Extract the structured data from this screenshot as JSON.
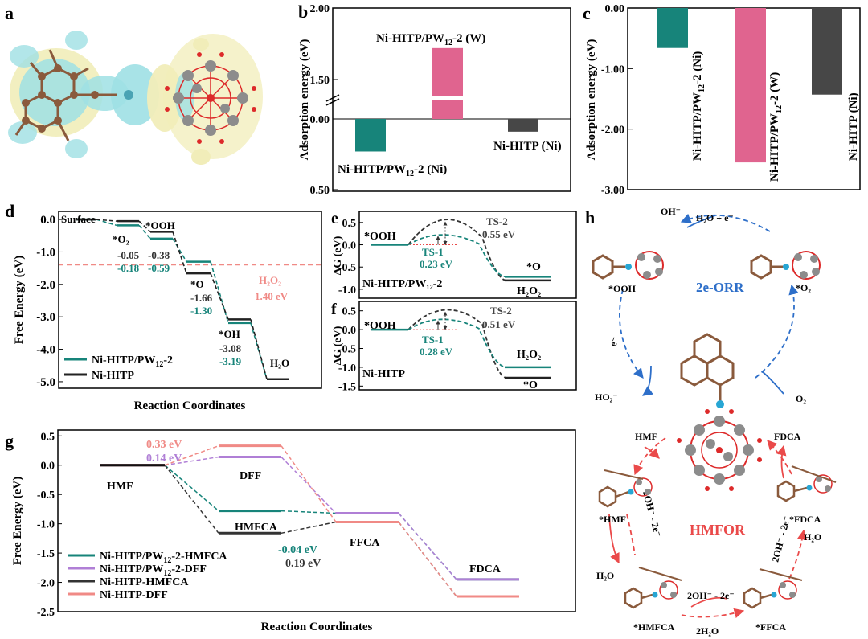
{
  "colors": {
    "teal": "#17847a",
    "pink": "#e0648f",
    "dark": "#474747",
    "purple": "#b07fd6",
    "salmon": "#f08a86",
    "cyan_lobe": "#9fe0e4",
    "yellow_lobe": "#f1edb9",
    "brown": "#8a5a3c",
    "grey_atom": "#8c8c8c",
    "red_atom": "#dd2a2a",
    "blue_arrow": "#2e6fc9",
    "red_arrow": "#ea4a4a"
  },
  "panel_labels": [
    "a",
    "b",
    "c",
    "d",
    "e",
    "f",
    "g",
    "h"
  ],
  "panel_a": {
    "description_icon": "charge-density-difference-isosurface"
  },
  "chart_data": [
    {
      "id": "b",
      "type": "bar",
      "ylabel": "Adsorption energy (eV)",
      "ticks_top": [
        "2.00",
        "1.50"
      ],
      "ticks_bottom": [
        "0.00",
        "0.50"
      ],
      "categories": [
        "Ni-HITP/PW12-2 (Ni)",
        "Ni-HITP/PW12-2 (W)",
        "Ni-HITP (Ni)"
      ],
      "labels": [
        {
          "main": "Ni-HITP/PW",
          "sub": "12",
          "rest": "-2 (Ni)"
        },
        {
          "main": "Ni-HITP/PW",
          "sub": "12",
          "rest": "-2 (W)"
        },
        {
          "main": "Ni-HITP (Ni)",
          "sub": "",
          "rest": ""
        }
      ],
      "values": [
        -0.23,
        1.72,
        -0.09
      ],
      "bar_colors": [
        "#17847a",
        "#e0648f",
        "#474747"
      ],
      "axis_break": true
    },
    {
      "id": "c",
      "type": "bar",
      "ylabel": "Adsorption energy (eV)",
      "ticks": [
        "0.00",
        "-1.00",
        "-2.00",
        "-3.00"
      ],
      "ylim": [
        -3.0,
        0.0
      ],
      "categories": [
        "Ni-HITP/PW12-2 (Ni)",
        "Ni-HITP/PW12-2 (W)",
        "Ni-HITP (Ni)"
      ],
      "labels": [
        {
          "main": "Ni-HITP/PW",
          "sub": "12",
          "rest": "-2 (Ni)"
        },
        {
          "main": "Ni-HITP/PW",
          "sub": "12",
          "rest": "-2 (W)"
        },
        {
          "main": "Ni-HITP (Ni)",
          "sub": "",
          "rest": ""
        }
      ],
      "values": [
        -0.66,
        -2.55,
        -1.43
      ],
      "bar_colors": [
        "#17847a",
        "#e0648f",
        "#474747"
      ]
    },
    {
      "id": "d",
      "type": "line",
      "xlabel": "Reaction Coordinates",
      "ylabel": "Free Energy (eV)",
      "ylim": [
        -5.2,
        0.25
      ],
      "yticks": [
        0.0,
        -1.0,
        -2.0,
        -3.0,
        -4.0,
        -5.0
      ],
      "yticklabels": [
        "0.0",
        "-1.0",
        "-2.0",
        "-3.0",
        "-4.0",
        "-5.0"
      ],
      "states": [
        "Surface",
        "*O2",
        "*OOH",
        "*O",
        "*OH",
        "H2O"
      ],
      "series": [
        {
          "name": "Ni-HITP/PW12-2",
          "values": [
            0.0,
            -0.18,
            -0.59,
            -1.3,
            -3.19,
            -4.92
          ]
        },
        {
          "name": "Ni-HITP",
          "values": [
            0.0,
            -0.05,
            -0.38,
            -1.66,
            -3.08,
            -4.92
          ]
        }
      ],
      "reference_line": -1.4,
      "texts": {
        "surface": "Surface",
        "o2": "*O₂",
        "ooh": "*OOH",
        "o": "*O",
        "oh": "*OH",
        "h2o": "H₂O",
        "v_o2_ni": "-0.05",
        "v_o2_pw": "-0.18",
        "v_ooh_ni": "-0.38",
        "v_ooh_pw": "-0.59",
        "v_o_ni": "-1.66",
        "v_o_pw": "-1.30",
        "v_oh_ni": "-3.08",
        "v_oh_pw": "-3.19",
        "h2o2": "H₂O₂",
        "h2o2_val": "1.40 eV"
      },
      "legend": [
        {
          "main": "Ni-HITP/PW",
          "sub": "12",
          "rest": "-2"
        },
        {
          "main": "Ni-HITP",
          "sub": "",
          "rest": ""
        }
      ]
    },
    {
      "id": "e",
      "type": "line",
      "ylabel": "ΔG (eV)",
      "ylim": [
        -1.2,
        0.75
      ],
      "yticks": [
        0.5,
        0.0,
        -0.5,
        -1.0
      ],
      "yticklabels": [
        "0.5",
        "0.0",
        "-0.5",
        "-1.0"
      ],
      "title": "Ni-HITP/PW₁₂-2",
      "start": "*OOH",
      "end_a": "*O",
      "end_b": "H₂O₂",
      "ts1_label": "TS-1",
      "ts1_value": "0.23 eV",
      "ts2_label": "TS-2",
      "ts2_value": "0.55 eV",
      "ts1": 0.23,
      "ts2": 0.55,
      "end_o": -0.72,
      "end_h2o2": -0.8
    },
    {
      "id": "f",
      "type": "line",
      "ylabel": "ΔG (eV)",
      "ylim": [
        -1.6,
        0.75
      ],
      "yticks": [
        0.5,
        0.0,
        -0.5,
        -1.0,
        -1.5
      ],
      "yticklabels": [
        "0.5",
        "0.0",
        "-0.5",
        "-1.0",
        "-1.5"
      ],
      "title": "Ni-HITP",
      "start": "*OOH",
      "end_a": "H₂O₂",
      "end_b": "*O",
      "ts1_label": "TS-1",
      "ts1_value": "0.28 eV",
      "ts2_label": "TS-2",
      "ts2_value": "0.51 eV",
      "ts1": 0.28,
      "ts2": 0.51,
      "end_h2o2": -1.0,
      "end_o": -1.28
    },
    {
      "id": "g",
      "type": "line",
      "xlabel": "Reaction Coordinates",
      "ylabel": "Free Energy (eV)",
      "ylim": [
        -2.5,
        0.6
      ],
      "yticks": [
        0.5,
        0.0,
        -0.5,
        -1.0,
        -1.5,
        -2.0,
        -2.5
      ],
      "yticklabels": [
        "0.5",
        "0.0",
        "-0.5",
        "-1.0",
        "-1.5",
        "-2.0",
        "-2.5"
      ],
      "states": [
        "HMF",
        "DFF / HMFCA",
        "FFCA",
        "FDCA"
      ],
      "series": [
        {
          "name": "Ni-HITP/PW12-2-HMFCA",
          "values": [
            0.0,
            -0.78,
            -0.82,
            -1.95
          ]
        },
        {
          "name": "Ni-HITP/PW12-2-DFF",
          "values": [
            0.0,
            0.14,
            -0.82,
            -1.95
          ]
        },
        {
          "name": "Ni-HITP-HMFCA",
          "values": [
            0.0,
            -1.16,
            -0.97,
            -2.24
          ]
        },
        {
          "name": "Ni-HITP-DFF",
          "values": [
            0.0,
            0.33,
            -0.97,
            -2.24
          ]
        }
      ],
      "texts": {
        "hmf": "HMF",
        "dff": "DFF",
        "hmfca": "HMFCA",
        "ffca": "FFCA",
        "fdca": "FDCA",
        "v033": "0.33 eV",
        "v014": "0.14 eV",
        "vm004": "-0.04 eV",
        "v019": "0.19 eV"
      },
      "legend": [
        {
          "main": "Ni-HITP/PW",
          "sub": "12",
          "rest": "-2-HMFCA"
        },
        {
          "main": "Ni-HITP/PW",
          "sub": "12",
          "rest": "-2-DFF"
        },
        {
          "main": "Ni-HITP-HMFCA",
          "sub": "",
          "rest": ""
        },
        {
          "main": "Ni-HITP-DFF",
          "sub": "",
          "rest": ""
        }
      ]
    }
  ],
  "panel_h": {
    "oh": "OH⁻",
    "h2o_e": "H₂O + e⁻",
    "ooh": "*OOH",
    "o2s": "*O₂",
    "orr": "2e-ORR",
    "e": "e⁻",
    "ho2": "HO₂⁻",
    "o2": "O₂",
    "hmf_in": "HMF",
    "fdca_out": "FDCA",
    "hmf": "*HMF",
    "fdca": "*FDCA",
    "hmfor": "HMFOR",
    "h2o_l": "H₂O",
    "h2o_r": "H₂O",
    "oh2_l": "2OH⁻ - 2e⁻",
    "oh2_r": "2OH⁻ - 2e⁻",
    "oh2_b": "2OH⁻ - 2e⁻",
    "h2o2_b": "2H₂O",
    "hmfca": "*HMFCA",
    "ffca": "*FFCA"
  }
}
